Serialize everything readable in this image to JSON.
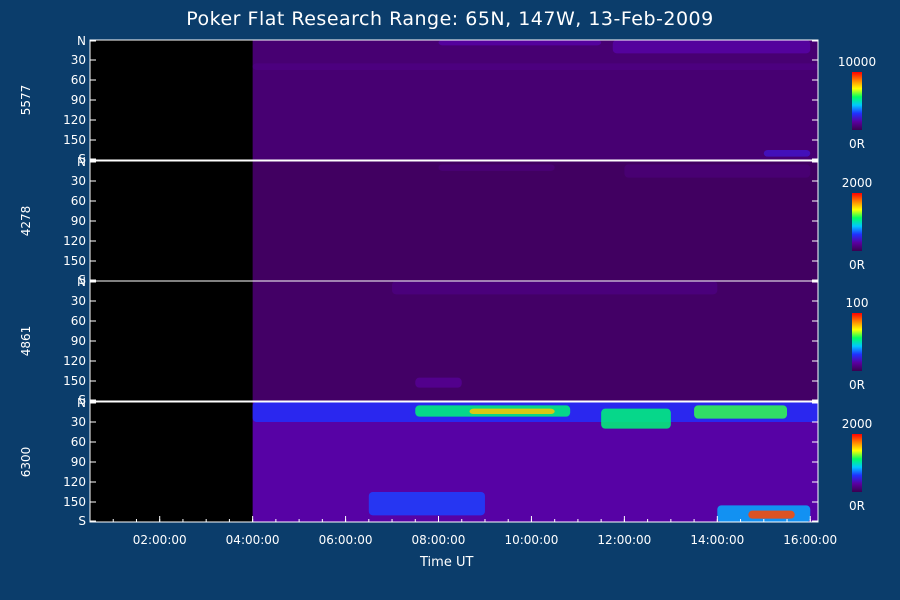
{
  "chart_data": {
    "type": "heatmap",
    "title": "Poker Flat Research Range: 65N, 147W, 13-Feb-2009",
    "xlabel": "Time UT",
    "x_ticks": [
      "02:00:00",
      "04:00:00",
      "06:00:00",
      "08:00:00",
      "10:00:00",
      "12:00:00",
      "14:00:00",
      "16:00:00"
    ],
    "x_range": [
      "00:30:00",
      "16:10:00"
    ],
    "y_ticks": [
      "N",
      "30",
      "60",
      "90",
      "120",
      "150",
      "S"
    ],
    "y_range": [
      0,
      180
    ],
    "data_start": "04:00:00",
    "colormap": [
      "#3a0050",
      "#5a00a0",
      "#2030ff",
      "#00c8ff",
      "#00ff60",
      "#ffff00",
      "#ff8000",
      "#ff0000"
    ],
    "panels": [
      {
        "name": "5577",
        "scale_max": "10000",
        "scale_min": "0R",
        "features": [
          {
            "t_start": "04:00:00",
            "t_end": "16:10:00",
            "lat_start": 0,
            "lat_end": 180,
            "intensity": 0.06
          },
          {
            "t_start": "08:00:00",
            "t_end": "11:30:00",
            "lat_start": 0,
            "lat_end": 8,
            "intensity": 0.15
          },
          {
            "t_start": "11:45:00",
            "t_end": "16:00:00",
            "lat_start": 0,
            "lat_end": 20,
            "intensity": 0.15
          },
          {
            "t_start": "04:00:00",
            "t_end": "16:10:00",
            "lat_start": 35,
            "lat_end": 45,
            "intensity": 0.1
          },
          {
            "t_start": "15:00:00",
            "t_end": "16:00:00",
            "lat_start": 165,
            "lat_end": 175,
            "intensity": 0.2
          }
        ]
      },
      {
        "name": "4278",
        "scale_max": "2000",
        "scale_min": "0R",
        "features": [
          {
            "t_start": "04:00:00",
            "t_end": "16:10:00",
            "lat_start": 0,
            "lat_end": 180,
            "intensity": 0.03
          },
          {
            "t_start": "08:00:00",
            "t_end": "10:30:00",
            "lat_start": 5,
            "lat_end": 15,
            "intensity": 0.08
          },
          {
            "t_start": "12:00:00",
            "t_end": "16:00:00",
            "lat_start": 5,
            "lat_end": 25,
            "intensity": 0.08
          }
        ]
      },
      {
        "name": "4861",
        "scale_max": "100",
        "scale_min": "0R",
        "features": [
          {
            "t_start": "04:00:00",
            "t_end": "16:10:00",
            "lat_start": 0,
            "lat_end": 180,
            "intensity": 0.04
          },
          {
            "t_start": "07:00:00",
            "t_end": "14:00:00",
            "lat_start": 0,
            "lat_end": 20,
            "intensity": 0.1
          },
          {
            "t_start": "07:30:00",
            "t_end": "08:30:00",
            "lat_start": 145,
            "lat_end": 160,
            "intensity": 0.12
          }
        ]
      },
      {
        "name": "6300",
        "scale_max": "2000",
        "scale_min": "0R",
        "features": [
          {
            "t_start": "04:00:00",
            "t_end": "16:10:00",
            "lat_start": 0,
            "lat_end": 180,
            "intensity": 0.15
          },
          {
            "t_start": "04:00:00",
            "t_end": "16:10:00",
            "lat_start": 0,
            "lat_end": 30,
            "intensity": 0.28
          },
          {
            "t_start": "07:30:00",
            "t_end": "10:50:00",
            "lat_start": 5,
            "lat_end": 22,
            "intensity": 0.55
          },
          {
            "t_start": "08:40:00",
            "t_end": "10:30:00",
            "lat_start": 10,
            "lat_end": 18,
            "intensity": 0.78
          },
          {
            "t_start": "11:30:00",
            "t_end": "13:00:00",
            "lat_start": 10,
            "lat_end": 40,
            "intensity": 0.55
          },
          {
            "t_start": "13:30:00",
            "t_end": "15:30:00",
            "lat_start": 5,
            "lat_end": 25,
            "intensity": 0.6
          },
          {
            "t_start": "06:30:00",
            "t_end": "09:00:00",
            "lat_start": 135,
            "lat_end": 170,
            "intensity": 0.3
          },
          {
            "t_start": "14:00:00",
            "t_end": "16:00:00",
            "lat_start": 155,
            "lat_end": 180,
            "intensity": 0.4
          },
          {
            "t_start": "14:40:00",
            "t_end": "15:40:00",
            "lat_start": 163,
            "lat_end": 175,
            "intensity": 0.92
          }
        ]
      }
    ]
  }
}
